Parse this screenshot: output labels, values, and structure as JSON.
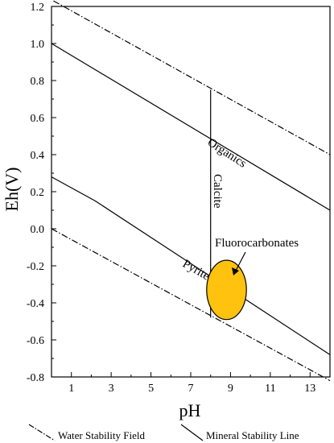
{
  "chart_data": {
    "type": "line",
    "xlabel": "pH",
    "ylabel": "Eh(V)",
    "xlim": [
      0,
      14
    ],
    "ylim": [
      -0.8,
      1.2
    ],
    "x_ticks": [
      1,
      3,
      5,
      7,
      9,
      11,
      13
    ],
    "x_tick_labels": [
      "1",
      "3",
      "5",
      "7",
      "9",
      "11",
      "13"
    ],
    "y_ticks": [
      1.2,
      1.0,
      0.8,
      0.6,
      0.4,
      0.2,
      0.0,
      -0.2,
      -0.4,
      -0.6,
      -0.8
    ],
    "y_tick_labels": [
      "1.2",
      "1.0",
      "0.8",
      "0.6",
      "0.4",
      "0.2",
      "0.0",
      "-0.2",
      "-0.4",
      "-0.6",
      "-0.8"
    ],
    "water_upper": [
      [
        0.1,
        1.23
      ],
      [
        14,
        0.4
      ]
    ],
    "water_lower": [
      [
        0,
        0.0
      ],
      [
        14,
        -0.82
      ]
    ],
    "organics_line": [
      [
        0,
        1.0
      ],
      [
        14,
        0.1
      ]
    ],
    "pyrite_line": [
      [
        0,
        0.28
      ],
      [
        2.2,
        0.15
      ],
      [
        14,
        -0.68
      ]
    ],
    "calcite_line": [
      [
        8.0,
        0.75
      ],
      [
        8.0,
        -0.48
      ]
    ],
    "fluorocarbonate_ellipse": {
      "cx": 8.8,
      "cy": -0.33,
      "rx": 1.0,
      "ry": 0.16,
      "color": "#FFC20E"
    },
    "labels": {
      "organics": "Organics",
      "calcite": "Calcite",
      "pyrite": "Pyrite",
      "fluorocarbonates": "Fluorocarbonates"
    },
    "legend": {
      "water": "Water Stability Field",
      "mineral": "Mineral Stability Line"
    }
  }
}
